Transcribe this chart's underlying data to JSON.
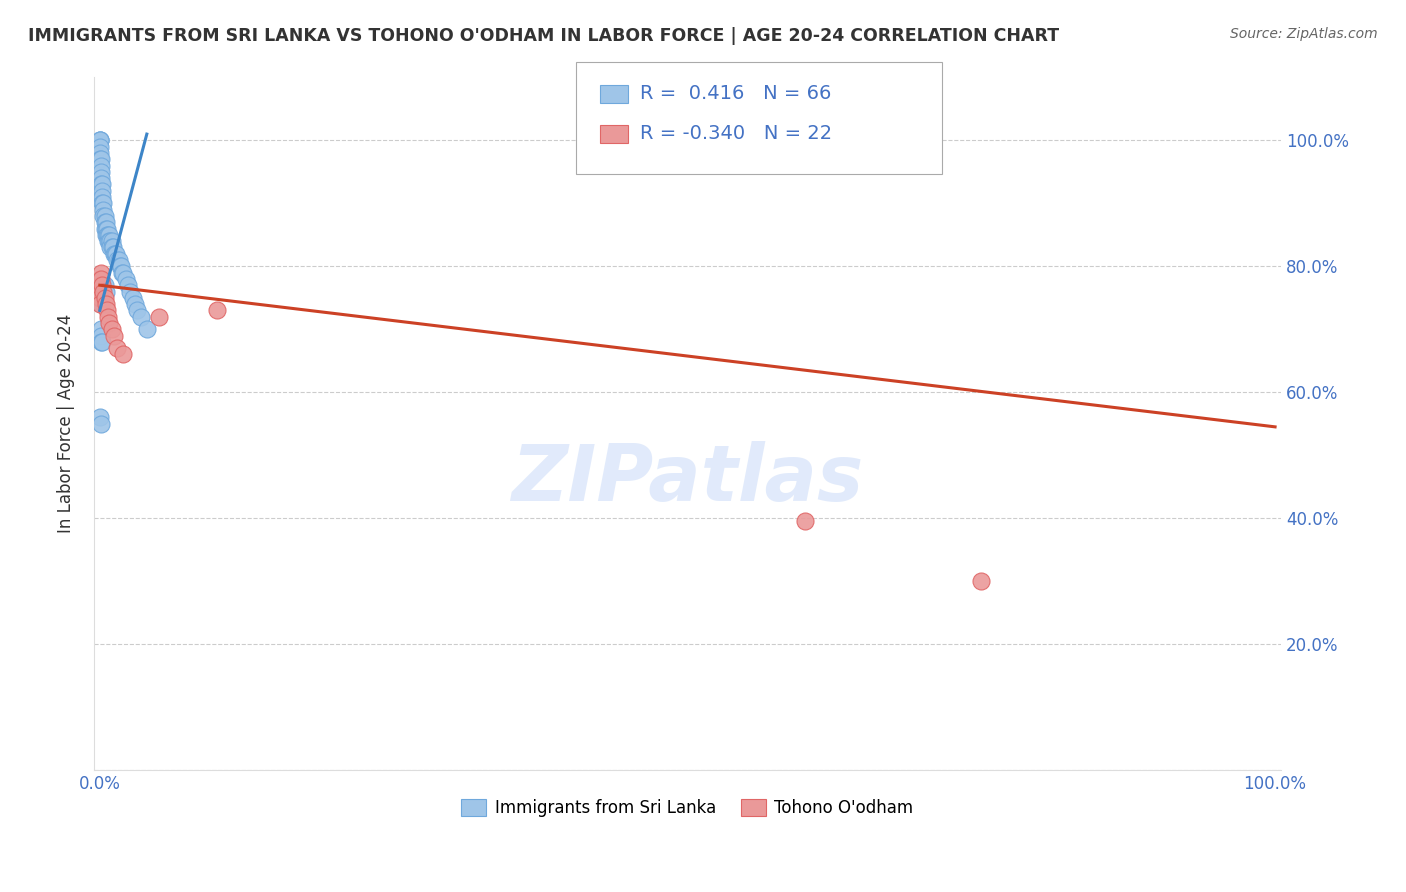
{
  "title": "IMMIGRANTS FROM SRI LANKA VS TOHONO O'ODHAM IN LABOR FORCE | AGE 20-24 CORRELATION CHART",
  "source": "Source: ZipAtlas.com",
  "ylabel": "In Labor Force | Age 20-24",
  "blue_R": 0.416,
  "blue_N": 66,
  "pink_R": -0.34,
  "pink_N": 22,
  "blue_color": "#9fc5e8",
  "pink_color": "#ea9999",
  "blue_edge_color": "#6fa8dc",
  "pink_edge_color": "#e06666",
  "blue_line_color": "#3d85c8",
  "pink_line_color": "#cc4125",
  "watermark": "ZIPatlas",
  "blue_scatter_x": [
    0.0,
    0.0,
    0.0,
    0.0,
    0.0,
    0.0,
    0.001,
    0.001,
    0.001,
    0.001,
    0.001,
    0.002,
    0.002,
    0.002,
    0.002,
    0.003,
    0.003,
    0.003,
    0.004,
    0.004,
    0.004,
    0.005,
    0.005,
    0.005,
    0.006,
    0.006,
    0.007,
    0.007,
    0.008,
    0.008,
    0.009,
    0.009,
    0.01,
    0.01,
    0.011,
    0.012,
    0.013,
    0.014,
    0.015,
    0.016,
    0.017,
    0.018,
    0.019,
    0.02,
    0.022,
    0.024,
    0.026,
    0.028,
    0.03,
    0.032,
    0.035,
    0.04,
    0.0,
    0.0,
    0.001,
    0.001,
    0.0,
    0.001,
    0.002,
    0.003,
    0.004,
    0.005,
    0.001,
    0.001,
    0.001,
    0.002
  ],
  "blue_scatter_y": [
    1.0,
    1.0,
    1.0,
    0.99,
    0.98,
    0.97,
    0.97,
    0.96,
    0.95,
    0.94,
    0.93,
    0.93,
    0.92,
    0.91,
    0.9,
    0.9,
    0.89,
    0.88,
    0.88,
    0.87,
    0.86,
    0.87,
    0.86,
    0.85,
    0.86,
    0.85,
    0.85,
    0.84,
    0.85,
    0.84,
    0.84,
    0.83,
    0.84,
    0.83,
    0.83,
    0.82,
    0.82,
    0.82,
    0.81,
    0.81,
    0.8,
    0.8,
    0.79,
    0.79,
    0.78,
    0.77,
    0.76,
    0.75,
    0.74,
    0.73,
    0.72,
    0.7,
    0.76,
    0.75,
    0.75,
    0.74,
    0.56,
    0.55,
    0.77,
    0.77,
    0.77,
    0.76,
    0.7,
    0.69,
    0.68,
    0.68
  ],
  "pink_scatter_x": [
    0.0,
    0.0,
    0.0,
    0.0,
    0.0,
    0.001,
    0.001,
    0.002,
    0.003,
    0.004,
    0.005,
    0.006,
    0.007,
    0.008,
    0.01,
    0.012,
    0.015,
    0.02,
    0.6,
    0.75,
    0.1,
    0.05
  ],
  "pink_scatter_y": [
    0.78,
    0.77,
    0.76,
    0.75,
    0.74,
    0.79,
    0.78,
    0.77,
    0.76,
    0.75,
    0.74,
    0.73,
    0.72,
    0.71,
    0.7,
    0.69,
    0.67,
    0.66,
    0.395,
    0.3,
    0.73,
    0.72
  ],
  "blue_line_x0": 0.0,
  "blue_line_x1": 0.04,
  "blue_line_y0": 0.73,
  "blue_line_y1": 1.01,
  "pink_line_x0": 0.0,
  "pink_line_x1": 1.0,
  "pink_line_y0": 0.77,
  "pink_line_y1": 0.545,
  "legend_label_blue": "Immigrants from Sri Lanka",
  "legend_label_pink": "Tohono O'odham",
  "xlim": [
    -0.005,
    1.005
  ],
  "ylim": [
    0.0,
    1.1
  ],
  "ytick_positions": [
    0.0,
    0.2,
    0.4,
    0.6,
    0.8,
    1.0
  ],
  "ytick_labels_right": [
    "",
    "20.0%",
    "40.0%",
    "60.0%",
    "80.0%",
    "100.0%"
  ],
  "xtick_positions": [
    0.0,
    0.2,
    0.4,
    0.6,
    0.8,
    1.0
  ],
  "xtick_labels": [
    "0.0%",
    "",
    "",
    "",
    "",
    "100.0%"
  ]
}
